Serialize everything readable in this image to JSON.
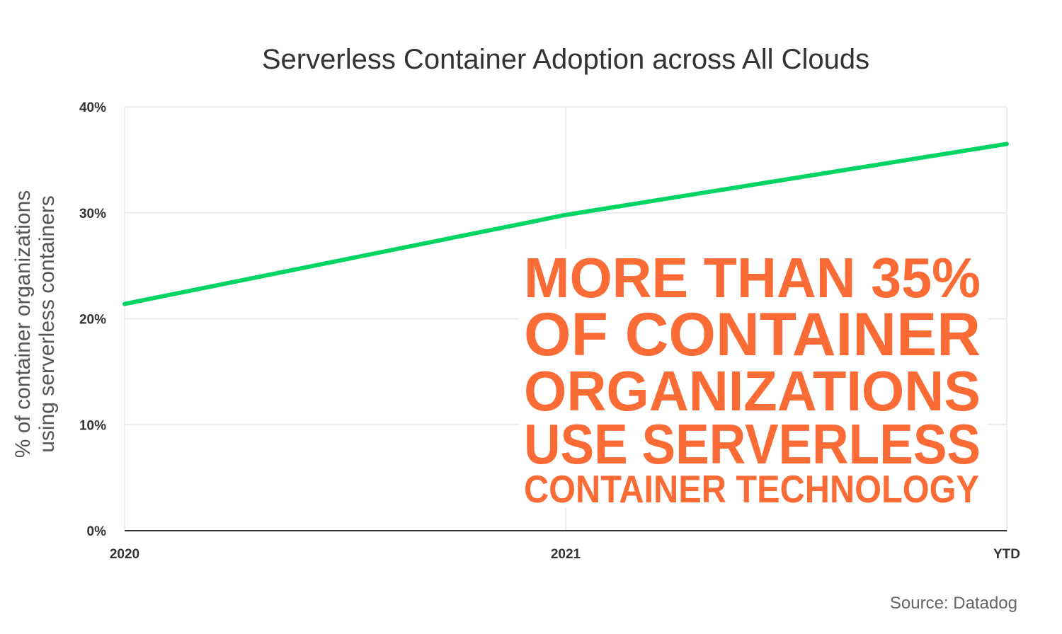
{
  "chart_data": {
    "type": "line",
    "title": "Serverless Container Adoption across All Clouds",
    "ylabel_lines": [
      "% of container organizations",
      "using serverless containers"
    ],
    "xlabel": "",
    "categories": [
      "2020",
      "2021",
      "YTD"
    ],
    "series": [
      {
        "values": [
          21.4,
          29.8,
          36.5
        ],
        "color": "#00d563"
      }
    ],
    "ylim": [
      0,
      40
    ],
    "yticks": [
      0,
      10,
      20,
      30,
      40
    ],
    "ytick_labels": [
      "0%",
      "10%",
      "20%",
      "30%",
      "40%"
    ],
    "grid": true,
    "annotation": {
      "lines": [
        "MORE THAN 35%",
        "OF CONTAINER",
        "ORGANIZATIONS",
        "USE SERVERLESS",
        "CONTAINER TECHNOLOGY"
      ],
      "color": "#fa6b35"
    },
    "source": "Source: Datadog"
  }
}
